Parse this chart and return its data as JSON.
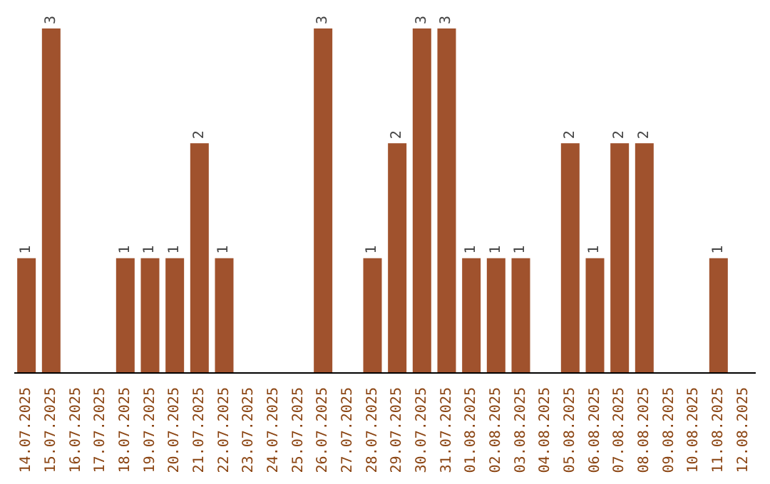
{
  "chart_data": {
    "type": "bar",
    "categories": [
      "14.07.2025",
      "15.07.2025",
      "16.07.2025",
      "17.07.2025",
      "18.07.2025",
      "19.07.2025",
      "20.07.2025",
      "21.07.2025",
      "22.07.2025",
      "23.07.2025",
      "24.07.2025",
      "25.07.2025",
      "26.07.2025",
      "27.07.2025",
      "28.07.2025",
      "29.07.2025",
      "30.07.2025",
      "31.07.2025",
      "01.08.2025",
      "02.08.2025",
      "03.08.2025",
      "04.08.2025",
      "05.08.2025",
      "06.08.2025",
      "07.08.2025",
      "08.08.2025",
      "09.08.2025",
      "10.08.2025",
      "11.08.2025",
      "12.08.2025"
    ],
    "values": [
      1,
      3,
      0,
      0,
      1,
      1,
      1,
      2,
      1,
      0,
      0,
      0,
      3,
      0,
      1,
      2,
      3,
      3,
      1,
      1,
      1,
      0,
      2,
      1,
      2,
      2,
      0,
      0,
      1,
      0
    ],
    "value_labels": [
      "1",
      "3",
      null,
      null,
      "1",
      "1",
      "1",
      "2",
      "1",
      null,
      null,
      null,
      "3",
      null,
      "1",
      "2",
      "3",
      "3",
      "1",
      "1",
      "1",
      null,
      "2",
      "1",
      "2",
      "2",
      null,
      null,
      "1",
      null
    ],
    "color": "#a0522d",
    "tick_labels": "x"
  }
}
